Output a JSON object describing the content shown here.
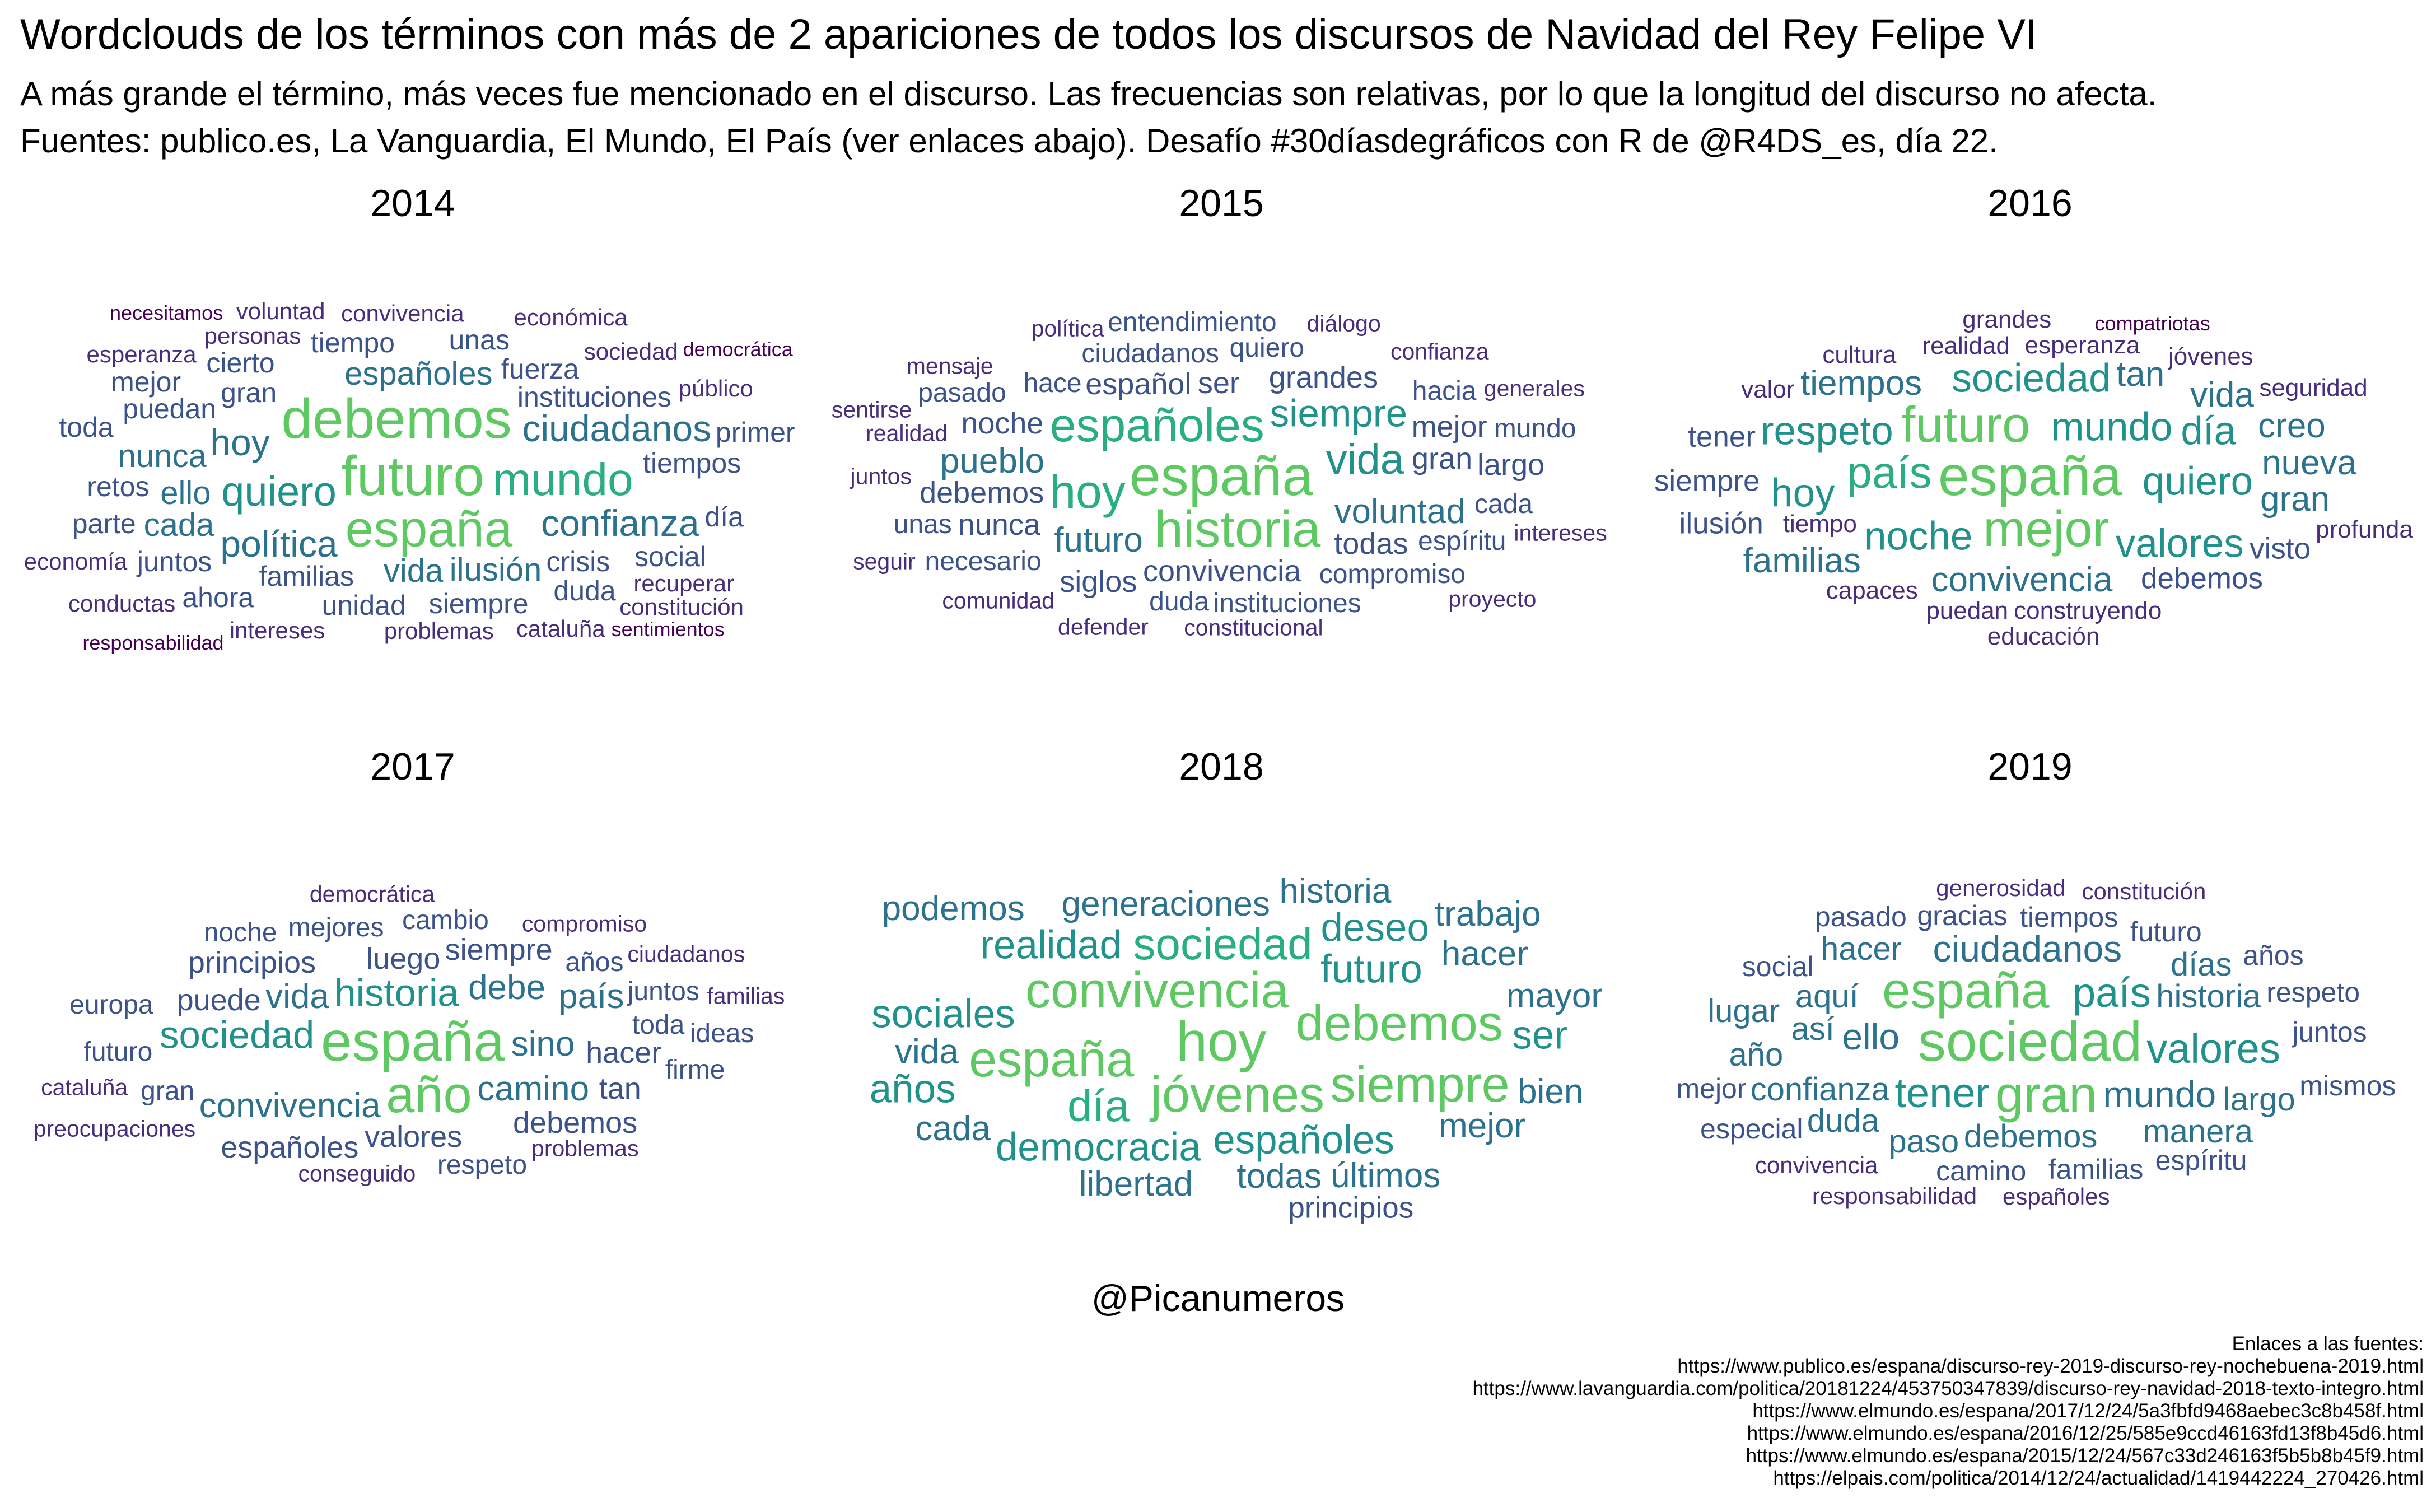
{
  "title": "Wordclouds de los términos con más de 2 apariciones de todos los discursos de Navidad del Rey Felipe VI",
  "subtitle_lines": [
    "A más grande el término, más veces fue mencionado en el discurso. Las frecuencias son relativas, por lo que la longitud del discurso no afecta.",
    "Fuentes: publico.es, La Vanguardia, El Mundo, El País (ver enlaces abajo). Desafío #30díasdegráficos con R de @R4DS_es, día 22."
  ],
  "author": "@Picanumeros",
  "sources_heading": "Enlaces a las fuentes:",
  "sources": [
    "https://www.publico.es/espana/discurso-rey-2019-discurso-rey-nochebuena-2019.html",
    "https://www.lavanguardia.com/politica/20181224/453750347839/discurso-rey-navidad-2018-texto-integro.html",
    "https://www.elmundo.es/espana/2017/12/24/5a3fbfd9468aebec3c8b458f.html",
    "https://www.elmundo.es/espana/2016/12/25/585e9ccd46163fd13f8b45d6.html",
    "https://www.elmundo.es/espana/2015/12/24/567c33d246163f5b5b8b45f9.html",
    "https://elpais.com/politica/2014/12/24/actualidad/1419442224_270426.html"
  ],
  "palette": [
    "#440154",
    "#472d7b",
    "#3b528b",
    "#2c728e",
    "#21918c",
    "#28ae80",
    "#5ec962"
  ],
  "chart_data": [
    {
      "type": "wordcloud",
      "title": "2014",
      "words": [
        {
          "text": "futuro",
          "f": 9
        },
        {
          "text": "debemos",
          "f": 9
        },
        {
          "text": "españa",
          "f": 8
        },
        {
          "text": "mundo",
          "f": 7
        },
        {
          "text": "quiero",
          "f": 6
        },
        {
          "text": "ciudadanos",
          "f": 5
        },
        {
          "text": "confianza",
          "f": 5
        },
        {
          "text": "política",
          "f": 5
        },
        {
          "text": "hoy",
          "f": 5
        },
        {
          "text": "ello",
          "f": 4
        },
        {
          "text": "vida",
          "f": 4
        },
        {
          "text": "españoles",
          "f": 4
        },
        {
          "text": "ilusión",
          "f": 4
        },
        {
          "text": "nunca",
          "f": 4
        },
        {
          "text": "cada",
          "f": 4
        },
        {
          "text": "instituciones",
          "f": 3
        },
        {
          "text": "familias",
          "f": 3
        },
        {
          "text": "tiempos",
          "f": 3
        },
        {
          "text": "puedan",
          "f": 3
        },
        {
          "text": "fuerza",
          "f": 3
        },
        {
          "text": "crisis",
          "f": 3
        },
        {
          "text": "gran",
          "f": 3
        },
        {
          "text": "retos",
          "f": 3
        },
        {
          "text": "juntos",
          "f": 3
        },
        {
          "text": "social",
          "f": 3
        },
        {
          "text": "siempre",
          "f": 3
        },
        {
          "text": "unidad",
          "f": 3
        },
        {
          "text": "parte",
          "f": 3
        },
        {
          "text": "cierto",
          "f": 3
        },
        {
          "text": "tiempo",
          "f": 3
        },
        {
          "text": "día",
          "f": 3
        },
        {
          "text": "duda",
          "f": 3
        },
        {
          "text": "toda",
          "f": 3
        },
        {
          "text": "unas",
          "f": 3
        },
        {
          "text": "mejor",
          "f": 3
        },
        {
          "text": "primer",
          "f": 3
        },
        {
          "text": "ahora",
          "f": 3
        },
        {
          "text": "sociedad",
          "f": 2
        },
        {
          "text": "público",
          "f": 2
        },
        {
          "text": "recuperar",
          "f": 2
        },
        {
          "text": "problemas",
          "f": 2
        },
        {
          "text": "personas",
          "f": 2
        },
        {
          "text": "economía",
          "f": 2
        },
        {
          "text": "esperanza",
          "f": 2
        },
        {
          "text": "convivencia",
          "f": 2
        },
        {
          "text": "cataluña",
          "f": 2
        },
        {
          "text": "intereses",
          "f": 2
        },
        {
          "text": "sentimientos",
          "f": 1
        },
        {
          "text": "responsabilidad",
          "f": 1
        },
        {
          "text": "constitución",
          "f": 2
        },
        {
          "text": "democrática",
          "f": 1
        },
        {
          "text": "económica",
          "f": 2
        },
        {
          "text": "necesitamos",
          "f": 1
        },
        {
          "text": "conductas",
          "f": 2
        },
        {
          "text": "voluntad",
          "f": 2
        }
      ]
    },
    {
      "type": "wordcloud",
      "title": "2015",
      "words": [
        {
          "text": "españa",
          "f": 10
        },
        {
          "text": "historia",
          "f": 9
        },
        {
          "text": "hoy",
          "f": 8
        },
        {
          "text": "españoles",
          "f": 8
        },
        {
          "text": "vida",
          "f": 7
        },
        {
          "text": "siempre",
          "f": 6
        },
        {
          "text": "voluntad",
          "f": 5
        },
        {
          "text": "convivencia",
          "f": 4
        },
        {
          "text": "futuro",
          "f": 5
        },
        {
          "text": "pueblo",
          "f": 5
        },
        {
          "text": "debemos",
          "f": 4
        },
        {
          "text": "español",
          "f": 4
        },
        {
          "text": "gran",
          "f": 4
        },
        {
          "text": "todas",
          "f": 4
        },
        {
          "text": "nunca",
          "f": 4
        },
        {
          "text": "noche",
          "f": 4
        },
        {
          "text": "grandes",
          "f": 4
        },
        {
          "text": "mejor",
          "f": 4
        },
        {
          "text": "largo",
          "f": 4
        },
        {
          "text": "espíritu",
          "f": 3
        },
        {
          "text": "compromiso",
          "f": 3
        },
        {
          "text": "ciudadanos",
          "f": 3
        },
        {
          "text": "necesario",
          "f": 3
        },
        {
          "text": "instituciones",
          "f": 3
        },
        {
          "text": "siglos",
          "f": 4
        },
        {
          "text": "ser",
          "f": 4
        },
        {
          "text": "hace",
          "f": 3
        },
        {
          "text": "cada",
          "f": 3
        },
        {
          "text": "hacia",
          "f": 3
        },
        {
          "text": "duda",
          "f": 3
        },
        {
          "text": "unas",
          "f": 3
        },
        {
          "text": "quiero",
          "f": 3
        },
        {
          "text": "pasado",
          "f": 3
        },
        {
          "text": "entendimiento",
          "f": 3
        },
        {
          "text": "mundo",
          "f": 3
        },
        {
          "text": "realidad",
          "f": 2
        },
        {
          "text": "intereses",
          "f": 2
        },
        {
          "text": "confianza",
          "f": 2
        },
        {
          "text": "juntos",
          "f": 2
        },
        {
          "text": "generales",
          "f": 2
        },
        {
          "text": "constitucional",
          "f": 2
        },
        {
          "text": "comunidad",
          "f": 2
        },
        {
          "text": "mensaje",
          "f": 2
        },
        {
          "text": "sentirse",
          "f": 2
        },
        {
          "text": "defender",
          "f": 2
        },
        {
          "text": "seguir",
          "f": 2
        },
        {
          "text": "diálogo",
          "f": 2
        },
        {
          "text": "proyecto",
          "f": 2
        },
        {
          "text": "política",
          "f": 2
        }
      ]
    },
    {
      "type": "wordcloud",
      "title": "2016",
      "words": [
        {
          "text": "españa",
          "f": 8
        },
        {
          "text": "mejor",
          "f": 7
        },
        {
          "text": "futuro",
          "f": 7
        },
        {
          "text": "país",
          "f": 6
        },
        {
          "text": "mundo",
          "f": 5
        },
        {
          "text": "quiero",
          "f": 5
        },
        {
          "text": "noche",
          "f": 5
        },
        {
          "text": "valores",
          "f": 5
        },
        {
          "text": "sociedad",
          "f": 5
        },
        {
          "text": "convivencia",
          "f": 4
        },
        {
          "text": "respeto",
          "f": 5
        },
        {
          "text": "día",
          "f": 5
        },
        {
          "text": "hoy",
          "f": 5
        },
        {
          "text": "nueva",
          "f": 4
        },
        {
          "text": "gran",
          "f": 4
        },
        {
          "text": "tiempos",
          "f": 4
        },
        {
          "text": "vida",
          "f": 4
        },
        {
          "text": "familias",
          "f": 4
        },
        {
          "text": "tan",
          "f": 4
        },
        {
          "text": "creo",
          "f": 4
        },
        {
          "text": "debemos",
          "f": 3
        },
        {
          "text": "siempre",
          "f": 3
        },
        {
          "text": "ilusión",
          "f": 3
        },
        {
          "text": "capaces",
          "f": 2
        },
        {
          "text": "tiempo",
          "f": 2
        },
        {
          "text": "realidad",
          "f": 2
        },
        {
          "text": "esperanza",
          "f": 2
        },
        {
          "text": "construyendo",
          "f": 2
        },
        {
          "text": "puedan",
          "f": 2
        },
        {
          "text": "tener",
          "f": 3
        },
        {
          "text": "cultura",
          "f": 2
        },
        {
          "text": "visto",
          "f": 3
        },
        {
          "text": "valor",
          "f": 2
        },
        {
          "text": "seguridad",
          "f": 2
        },
        {
          "text": "jóvenes",
          "f": 2
        },
        {
          "text": "compatriotas",
          "f": 1
        },
        {
          "text": "profunda",
          "f": 2
        },
        {
          "text": "grandes",
          "f": 2
        },
        {
          "text": "educación",
          "f": 2
        }
      ]
    },
    {
      "type": "wordcloud",
      "title": "2017",
      "words": [
        {
          "text": "españa",
          "f": 10
        },
        {
          "text": "año",
          "f": 9
        },
        {
          "text": "historia",
          "f": 6
        },
        {
          "text": "sociedad",
          "f": 6
        },
        {
          "text": "sino",
          "f": 5
        },
        {
          "text": "convivencia",
          "f": 5
        },
        {
          "text": "debe",
          "f": 5
        },
        {
          "text": "camino",
          "f": 5
        },
        {
          "text": "vida",
          "f": 5
        },
        {
          "text": "luego",
          "f": 4
        },
        {
          "text": "país",
          "f": 5
        },
        {
          "text": "hacer",
          "f": 4
        },
        {
          "text": "puede",
          "f": 4
        },
        {
          "text": "valores",
          "f": 4
        },
        {
          "text": "siempre",
          "f": 4
        },
        {
          "text": "principios",
          "f": 4
        },
        {
          "text": "debemos",
          "f": 4
        },
        {
          "text": "españoles",
          "f": 4
        },
        {
          "text": "tan",
          "f": 4
        },
        {
          "text": "toda",
          "f": 3
        },
        {
          "text": "años",
          "f": 3
        },
        {
          "text": "gran",
          "f": 3
        },
        {
          "text": "juntos",
          "f": 3
        },
        {
          "text": "futuro",
          "f": 3
        },
        {
          "text": "firme",
          "f": 3
        },
        {
          "text": "mejores",
          "f": 3
        },
        {
          "text": "cambio",
          "f": 3
        },
        {
          "text": "europa",
          "f": 3
        },
        {
          "text": "problemas",
          "f": 2
        },
        {
          "text": "conseguido",
          "f": 2
        },
        {
          "text": "compromiso",
          "f": 2
        },
        {
          "text": "ciudadanos",
          "f": 2
        },
        {
          "text": "preocupaciones",
          "f": 2
        },
        {
          "text": "ideas",
          "f": 3
        },
        {
          "text": "respeto",
          "f": 3
        },
        {
          "text": "cataluña",
          "f": 2
        },
        {
          "text": "familias",
          "f": 2
        },
        {
          "text": "noche",
          "f": 3
        },
        {
          "text": "democrática",
          "f": 2
        }
      ]
    },
    {
      "type": "wordcloud",
      "title": "2018",
      "words": [
        {
          "text": "hoy",
          "f": 8
        },
        {
          "text": "jóvenes",
          "f": 7
        },
        {
          "text": "convivencia",
          "f": 7
        },
        {
          "text": "debemos",
          "f": 7
        },
        {
          "text": "españa",
          "f": 7
        },
        {
          "text": "siempre",
          "f": 7
        },
        {
          "text": "sociedad",
          "f": 6
        },
        {
          "text": "día",
          "f": 6
        },
        {
          "text": "españoles",
          "f": 5
        },
        {
          "text": "futuro",
          "f": 5
        },
        {
          "text": "sociales",
          "f": 5
        },
        {
          "text": "democracia",
          "f": 5
        },
        {
          "text": "realidad",
          "f": 5
        },
        {
          "text": "deseo",
          "f": 5
        },
        {
          "text": "años",
          "f": 5
        },
        {
          "text": "ser",
          "f": 5
        },
        {
          "text": "vida",
          "f": 4
        },
        {
          "text": "mejor",
          "f": 4
        },
        {
          "text": "hacer",
          "f": 4
        },
        {
          "text": "generaciones",
          "f": 4
        },
        {
          "text": "todas",
          "f": 4
        },
        {
          "text": "mayor",
          "f": 4
        },
        {
          "text": "cada",
          "f": 4
        },
        {
          "text": "libertad",
          "f": 4
        },
        {
          "text": "últimos",
          "f": 4
        },
        {
          "text": "historia",
          "f": 4
        },
        {
          "text": "bien",
          "f": 4
        },
        {
          "text": "podemos",
          "f": 4
        },
        {
          "text": "principios",
          "f": 3
        },
        {
          "text": "trabajo",
          "f": 4
        }
      ]
    },
    {
      "type": "wordcloud",
      "title": "2019",
      "words": [
        {
          "text": "sociedad",
          "f": 9
        },
        {
          "text": "gran",
          "f": 8
        },
        {
          "text": "españa",
          "f": 8
        },
        {
          "text": "país",
          "f": 6
        },
        {
          "text": "valores",
          "f": 6
        },
        {
          "text": "tener",
          "f": 6
        },
        {
          "text": "ciudadanos",
          "f": 5
        },
        {
          "text": "ello",
          "f": 5
        },
        {
          "text": "mundo",
          "f": 5
        },
        {
          "text": "historia",
          "f": 4
        },
        {
          "text": "debemos",
          "f": 4
        },
        {
          "text": "confianza",
          "f": 4
        },
        {
          "text": "así",
          "f": 4
        },
        {
          "text": "aquí",
          "f": 4
        },
        {
          "text": "días",
          "f": 4
        },
        {
          "text": "largo",
          "f": 4
        },
        {
          "text": "paso",
          "f": 4
        },
        {
          "text": "duda",
          "f": 4
        },
        {
          "text": "año",
          "f": 4
        },
        {
          "text": "manera",
          "f": 4
        },
        {
          "text": "hacer",
          "f": 4
        },
        {
          "text": "respeto",
          "f": 3
        },
        {
          "text": "lugar",
          "f": 4
        },
        {
          "text": "juntos",
          "f": 3
        },
        {
          "text": "futuro",
          "f": 3
        },
        {
          "text": "tiempos",
          "f": 3
        },
        {
          "text": "convivencia",
          "f": 2
        },
        {
          "text": "gracias",
          "f": 3
        },
        {
          "text": "generosidad",
          "f": 2
        },
        {
          "text": "familias",
          "f": 3
        },
        {
          "text": "social",
          "f": 3
        },
        {
          "text": "camino",
          "f": 3
        },
        {
          "text": "mismos",
          "f": 3
        },
        {
          "text": "años",
          "f": 3
        },
        {
          "text": "espíritu",
          "f": 3
        },
        {
          "text": "especial",
          "f": 3
        },
        {
          "text": "españoles",
          "f": 2
        },
        {
          "text": "mejor",
          "f": 3
        },
        {
          "text": "pasado",
          "f": 3
        },
        {
          "text": "constitución",
          "f": 2
        },
        {
          "text": "responsabilidad",
          "f": 2
        }
      ]
    }
  ]
}
